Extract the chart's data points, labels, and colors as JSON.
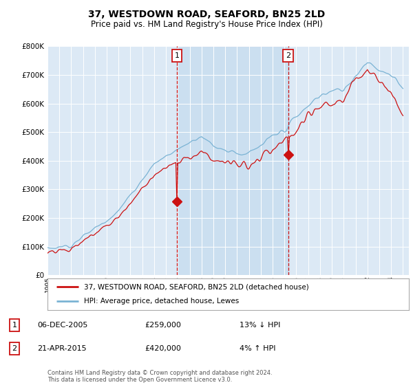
{
  "title": "37, WESTDOWN ROAD, SEAFORD, BN25 2LD",
  "subtitle": "Price paid vs. HM Land Registry's House Price Index (HPI)",
  "ylim": [
    0,
    800000
  ],
  "yticks": [
    0,
    100000,
    200000,
    300000,
    400000,
    500000,
    600000,
    700000,
    800000
  ],
  "x_start_year": 1995,
  "x_end_year": 2025,
  "hpi_color": "#7ab3d4",
  "price_color": "#cc1111",
  "marker1_year": 2005.92,
  "marker1_price": 259000,
  "marker2_year": 2015.31,
  "marker2_price": 420000,
  "legend_line1": "37, WESTDOWN ROAD, SEAFORD, BN25 2LD (detached house)",
  "legend_line2": "HPI: Average price, detached house, Lewes",
  "table_row1_num": "1",
  "table_row1_date": "06-DEC-2005",
  "table_row1_price": "£259,000",
  "table_row1_hpi": "13% ↓ HPI",
  "table_row2_num": "2",
  "table_row2_date": "21-APR-2015",
  "table_row2_price": "£420,000",
  "table_row2_hpi": "4% ↑ HPI",
  "footer": "Contains HM Land Registry data © Crown copyright and database right 2024.\nThis data is licensed under the Open Government Licence v3.0.",
  "plot_bg_color": "#dce9f5",
  "shade_color": "#c5dbee",
  "fig_bg_color": "#ffffff"
}
